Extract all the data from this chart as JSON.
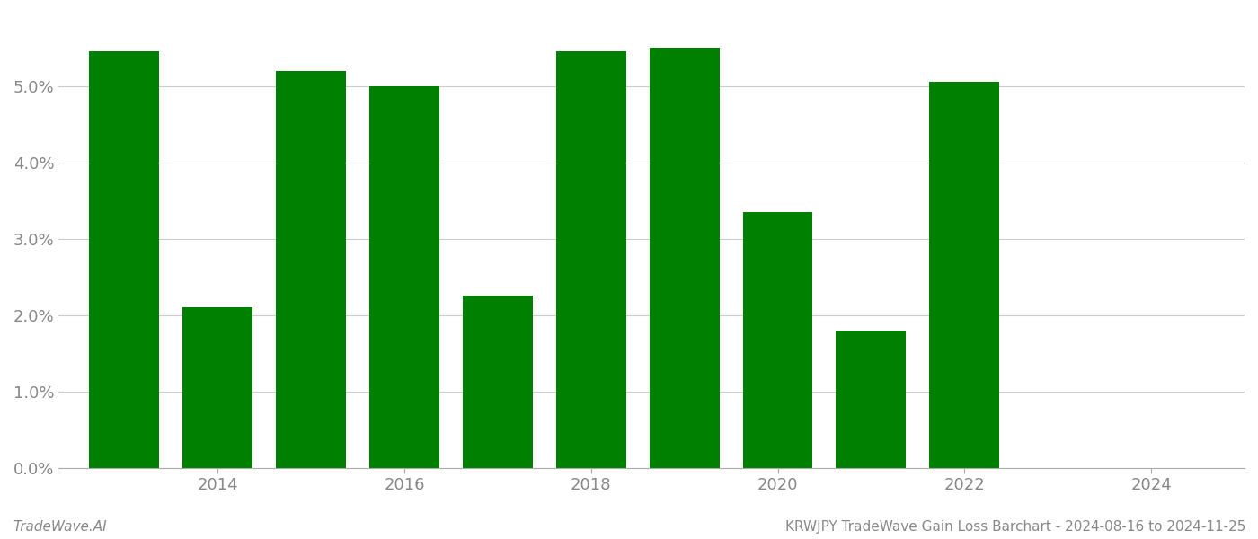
{
  "bar_years": [
    2013,
    2014,
    2015,
    2016,
    2017,
    2018,
    2019,
    2020,
    2021,
    2022
  ],
  "bar_values": [
    0.0545,
    0.021,
    0.052,
    0.05,
    0.0225,
    0.0545,
    0.055,
    0.0335,
    0.018,
    0.0505
  ],
  "bar_color": "#008000",
  "background_color": "#ffffff",
  "footer_left": "TradeWave.AI",
  "footer_right": "KRWJPY TradeWave Gain Loss Barchart - 2024-08-16 to 2024-11-25",
  "ylim": [
    0,
    0.0595
  ],
  "yticks": [
    0.0,
    0.01,
    0.02,
    0.03,
    0.04,
    0.05
  ],
  "xtick_labels": [
    "2014",
    "2016",
    "2018",
    "2020",
    "2022",
    "2024"
  ],
  "xtick_positions": [
    2014,
    2016,
    2018,
    2020,
    2022,
    2024
  ],
  "xlim": [
    2012.3,
    2025.0
  ],
  "bar_width": 0.75,
  "grid_color": "#cccccc",
  "tick_label_color": "#888888",
  "tick_label_fontsize": 13,
  "footer_fontsize": 11
}
